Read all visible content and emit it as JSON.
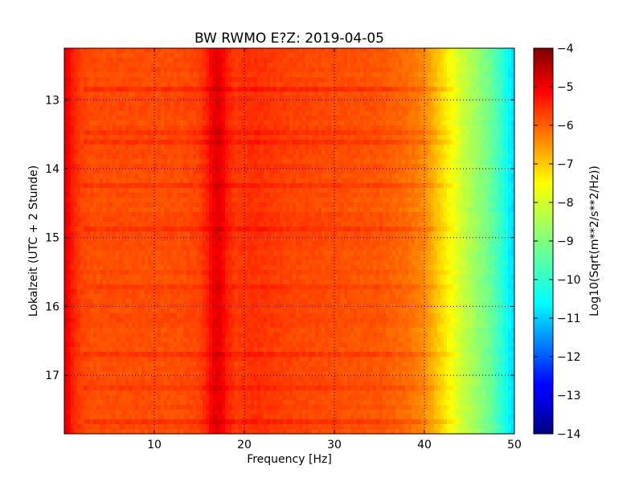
{
  "chart_data": {
    "type": "heatmap",
    "title": "BW RWMO E?Z: 2019-04-05",
    "xlabel": "Frequency [Hz]",
    "ylabel": "Lokalzeit (UTC + 2 Stunde)",
    "colorbar_label": "Log10(Sqrt(m**2/s**2/Hz))",
    "xlim": [
      0,
      50
    ],
    "ylim": [
      12.25,
      17.85
    ],
    "y_inverted": true,
    "clim": [
      -14,
      -4
    ],
    "colormap": "jet",
    "grid": true,
    "x_ticks": [
      10,
      20,
      30,
      40,
      50
    ],
    "y_ticks": [
      13,
      14,
      15,
      16,
      17
    ],
    "colorbar_ticks": [
      -4,
      -5,
      -6,
      -7,
      -8,
      -9,
      -10,
      -11,
      -12,
      -13,
      -14
    ],
    "frequency_profile": {
      "x": [
        0,
        0.5,
        1,
        2,
        3,
        5,
        8,
        10,
        13,
        15,
        16,
        16.5,
        17,
        17.5,
        18,
        19,
        21,
        25,
        30,
        35,
        38,
        40,
        41,
        42,
        43,
        44,
        45,
        46,
        47,
        48,
        49,
        49.5,
        50
      ],
      "values": [
        -5.0,
        -5.2,
        -5.6,
        -5.9,
        -6.0,
        -6.0,
        -6.0,
        -6.0,
        -6.0,
        -5.9,
        -5.5,
        -5.1,
        -5.0,
        -5.1,
        -5.5,
        -5.8,
        -5.7,
        -5.9,
        -6.0,
        -6.1,
        -6.3,
        -6.6,
        -7.0,
        -7.4,
        -7.8,
        -8.2,
        -8.5,
        -8.8,
        -9.1,
        -9.5,
        -10.0,
        -10.4,
        -10.6
      ]
    },
    "time_bands": {
      "y": [
        12.85,
        13.5,
        13.6,
        14.25,
        14.9,
        15.7,
        16.7,
        17.2,
        17.7
      ],
      "offsets": [
        0.3,
        0.2,
        0.25,
        0.2,
        0.3,
        0.2,
        0.25,
        0.2,
        0.3
      ]
    }
  }
}
